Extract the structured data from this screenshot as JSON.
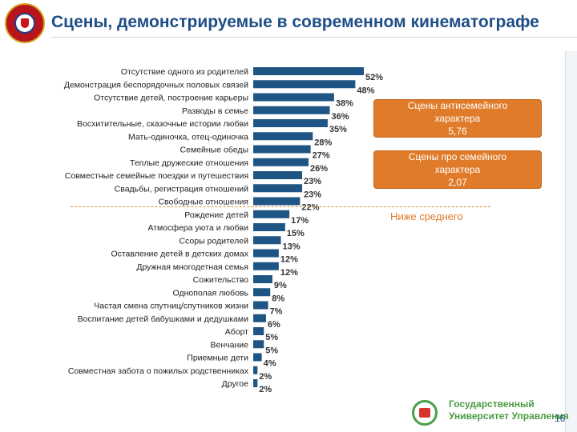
{
  "title": "Сцены, демонстрируемые в современном кинематографе",
  "badges": {
    "anti_family": {
      "line1": "Сцены антисемейного",
      "line2": "характера",
      "value": "5,76"
    },
    "pro_family": {
      "line1": "Сцены про семейного",
      "line2": "характера",
      "value": "2,07"
    }
  },
  "below_average_label": "Ниже среднего",
  "org": {
    "line1": "Государственный",
    "line2": "Университет Управления"
  },
  "page_number": "16",
  "chart_data": {
    "type": "bar",
    "orientation": "horizontal",
    "title": "",
    "xlabel": "",
    "ylabel": "",
    "xlim": [
      0,
      52
    ],
    "grid": false,
    "categories": [
      "Отсутствие одного из родителей",
      "Демонстрация беспорядочных половых связей",
      "Отсутствие детей, построение карьеры",
      "Разводы в семье",
      "Восхитительные, сказочные истории любви",
      "Мать-одиночка, отец-одиночка",
      "Семейные обеды",
      "Теплые дружеские отношения",
      "Совместные семейные поездки и путешествия",
      "Свадьбы, регистрация отношений",
      "Свободные отношения",
      "Рождение детей",
      "Атмосфера уюта и любви",
      "Ссоры родителей",
      "Оставление детей в детских домах",
      "Дружная многодетная семья",
      "Сожительство",
      "Однополая любовь",
      "Частая смена спутниц/спутников жизни",
      "Воспитание детей бабушками и дедушками",
      "Аборт",
      "Венчание",
      "Приемные дети",
      "Совместная забота о пожилых родственниках",
      "Другое"
    ],
    "values": [
      52,
      48,
      38,
      36,
      35,
      28,
      27,
      26,
      23,
      23,
      22,
      17,
      15,
      13,
      12,
      12,
      9,
      8,
      7,
      6,
      5,
      5,
      4,
      2,
      2
    ],
    "value_labels": [
      "52%",
      "48%",
      "38%",
      "36%",
      "35%",
      "28%",
      "27%",
      "26%",
      "23%",
      "23%",
      "22%",
      "17%",
      "15%",
      "13%",
      "12%",
      "12%",
      "9%",
      "8%",
      "7%",
      "6%",
      "5%",
      "5%",
      "4%",
      "2%",
      "2%"
    ],
    "bar_color": "#1f5584"
  }
}
